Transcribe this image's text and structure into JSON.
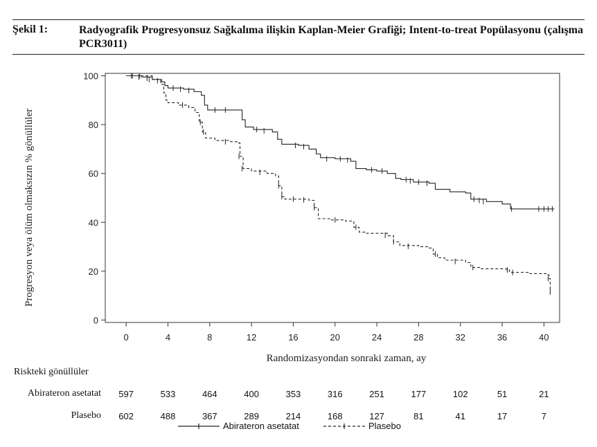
{
  "figure": {
    "label": "Şekil 1:",
    "title": "Radyografik Progresyonsuz Sağkalıma ilişkin Kaplan-Meier Grafiği; Intent-to-treat Popülasyonu (çalışma PCR3011)"
  },
  "chart_data": {
    "type": "line",
    "title": "",
    "xlabel": "Randomizasyondan sonraki zaman, ay",
    "ylabel": "Progresyon veya ölüm olmaksızın % gönüllüler",
    "xlim": [
      -2,
      41.5
    ],
    "ylim": [
      -1,
      101
    ],
    "x_ticks": [
      0,
      4,
      8,
      12,
      16,
      20,
      24,
      28,
      32,
      36,
      40
    ],
    "y_ticks": [
      0,
      20,
      40,
      60,
      80,
      100
    ],
    "grid": false,
    "legend_position": "bottom-center",
    "series": [
      {
        "name": "Abirateron asetatat",
        "line_style": "solid",
        "color": "#222222",
        "points": [
          [
            0,
            100
          ],
          [
            1.5,
            99.5
          ],
          [
            2.5,
            98.5
          ],
          [
            3.4,
            97.5
          ],
          [
            3.7,
            96
          ],
          [
            4,
            95
          ],
          [
            5.5,
            94.5
          ],
          [
            6.5,
            93.5
          ],
          [
            7.2,
            92
          ],
          [
            7.5,
            88
          ],
          [
            7.8,
            86
          ],
          [
            10.9,
            86
          ],
          [
            11.1,
            82
          ],
          [
            11.4,
            79
          ],
          [
            12.2,
            78
          ],
          [
            14,
            77
          ],
          [
            14.5,
            74
          ],
          [
            14.9,
            72
          ],
          [
            16.5,
            71.5
          ],
          [
            17.5,
            70
          ],
          [
            18.2,
            68
          ],
          [
            18.6,
            66.5
          ],
          [
            20,
            66
          ],
          [
            21.5,
            65
          ],
          [
            22,
            62
          ],
          [
            23,
            61.5
          ],
          [
            24,
            61
          ],
          [
            25,
            60
          ],
          [
            25.8,
            58
          ],
          [
            26.3,
            57.5
          ],
          [
            27.5,
            56.5
          ],
          [
            29,
            56
          ],
          [
            29.6,
            53.5
          ],
          [
            31,
            52.5
          ],
          [
            32.5,
            52
          ],
          [
            33,
            49.5
          ],
          [
            34.5,
            48.5
          ],
          [
            36,
            47.5
          ],
          [
            36.8,
            45.5
          ],
          [
            41,
            45.5
          ]
        ],
        "censor_marks": [
          [
            0.6,
            100
          ],
          [
            1.2,
            99.5
          ],
          [
            2.2,
            98.5
          ],
          [
            3.0,
            98
          ],
          [
            4.5,
            95
          ],
          [
            5.2,
            94.5
          ],
          [
            6.0,
            94
          ],
          [
            8.5,
            86
          ],
          [
            9.5,
            86
          ],
          [
            12.5,
            78
          ],
          [
            13.2,
            77.5
          ],
          [
            16.2,
            71.5
          ],
          [
            17.0,
            71
          ],
          [
            19.2,
            66
          ],
          [
            20.5,
            66
          ],
          [
            21.2,
            65.5
          ],
          [
            23.5,
            61.5
          ],
          [
            24.5,
            61
          ],
          [
            26.8,
            57.5
          ],
          [
            27.2,
            57
          ],
          [
            28.0,
            56.5
          ],
          [
            28.8,
            56
          ],
          [
            33.3,
            49.5
          ],
          [
            33.8,
            49
          ],
          [
            34.2,
            48.5
          ],
          [
            36.9,
            45.5
          ],
          [
            39.5,
            45.5
          ],
          [
            40.0,
            45.5
          ],
          [
            40.4,
            45.5
          ],
          [
            40.8,
            45.5
          ]
        ]
      },
      {
        "name": "Plasebo",
        "line_style": "dashed",
        "color": "#222222",
        "points": [
          [
            0,
            100
          ],
          [
            2.5,
            98.5
          ],
          [
            3.3,
            96.5
          ],
          [
            3.6,
            93
          ],
          [
            3.8,
            90
          ],
          [
            4,
            89
          ],
          [
            5,
            88
          ],
          [
            6,
            87
          ],
          [
            6.6,
            85
          ],
          [
            7,
            81
          ],
          [
            7.3,
            77
          ],
          [
            7.6,
            74.5
          ],
          [
            8.5,
            73.5
          ],
          [
            10,
            73
          ],
          [
            10.6,
            72.5
          ],
          [
            10.9,
            67
          ],
          [
            11.2,
            62
          ],
          [
            12,
            61
          ],
          [
            13.5,
            60
          ],
          [
            14.3,
            59
          ],
          [
            14.6,
            55
          ],
          [
            14.9,
            50.5
          ],
          [
            15.2,
            49.5
          ],
          [
            17.5,
            49
          ],
          [
            18,
            46
          ],
          [
            18.4,
            41.5
          ],
          [
            19.5,
            41
          ],
          [
            21,
            40.5
          ],
          [
            21.8,
            38
          ],
          [
            22.3,
            36
          ],
          [
            23,
            35.5
          ],
          [
            25,
            34.5
          ],
          [
            25.6,
            32
          ],
          [
            26.2,
            30.5
          ],
          [
            28,
            30
          ],
          [
            29,
            29.5
          ],
          [
            29.4,
            27
          ],
          [
            29.8,
            25.5
          ],
          [
            30.5,
            24.5
          ],
          [
            32.5,
            23.5
          ],
          [
            33,
            21.5
          ],
          [
            34,
            21
          ],
          [
            36.4,
            20.5
          ],
          [
            36.7,
            19.5
          ],
          [
            38.5,
            19
          ],
          [
            40.2,
            18.5
          ],
          [
            40.5,
            17
          ],
          [
            40.6,
            11.5
          ]
        ],
        "censor_marks": [
          [
            0.5,
            100
          ],
          [
            1.3,
            100
          ],
          [
            2.0,
            99
          ],
          [
            5.4,
            88
          ],
          [
            7.1,
            81
          ],
          [
            7.4,
            77
          ],
          [
            9.5,
            73
          ],
          [
            10.8,
            67
          ],
          [
            11.1,
            62
          ],
          [
            12.8,
            60.5
          ],
          [
            14.6,
            55
          ],
          [
            14.9,
            50.5
          ],
          [
            16.0,
            49.5
          ],
          [
            17.0,
            49.2
          ],
          [
            18.0,
            46
          ],
          [
            20.0,
            41
          ],
          [
            22.0,
            38
          ],
          [
            24.8,
            34.7
          ],
          [
            25.6,
            32
          ],
          [
            27.0,
            30.2
          ],
          [
            29.6,
            27
          ],
          [
            31.5,
            24
          ],
          [
            33.2,
            21.5
          ],
          [
            36.5,
            20.5
          ],
          [
            37.0,
            19.5
          ],
          [
            40.4,
            17
          ],
          [
            40.6,
            11.5
          ]
        ]
      }
    ]
  },
  "risk_table": {
    "title": "Riskteki gönüllüler",
    "times": [
      0,
      4,
      8,
      12,
      16,
      20,
      24,
      28,
      32,
      36,
      40
    ],
    "rows": [
      {
        "label": "Abirateron asetatat",
        "values": [
          "597",
          "533",
          "464",
          "400",
          "353",
          "316",
          "251",
          "177",
          "102",
          "51",
          "21"
        ]
      },
      {
        "label": "Plasebo",
        "values": [
          "602",
          "488",
          "367",
          "289",
          "214",
          "168",
          "127",
          "81",
          "41",
          "17",
          "7"
        ]
      }
    ]
  }
}
